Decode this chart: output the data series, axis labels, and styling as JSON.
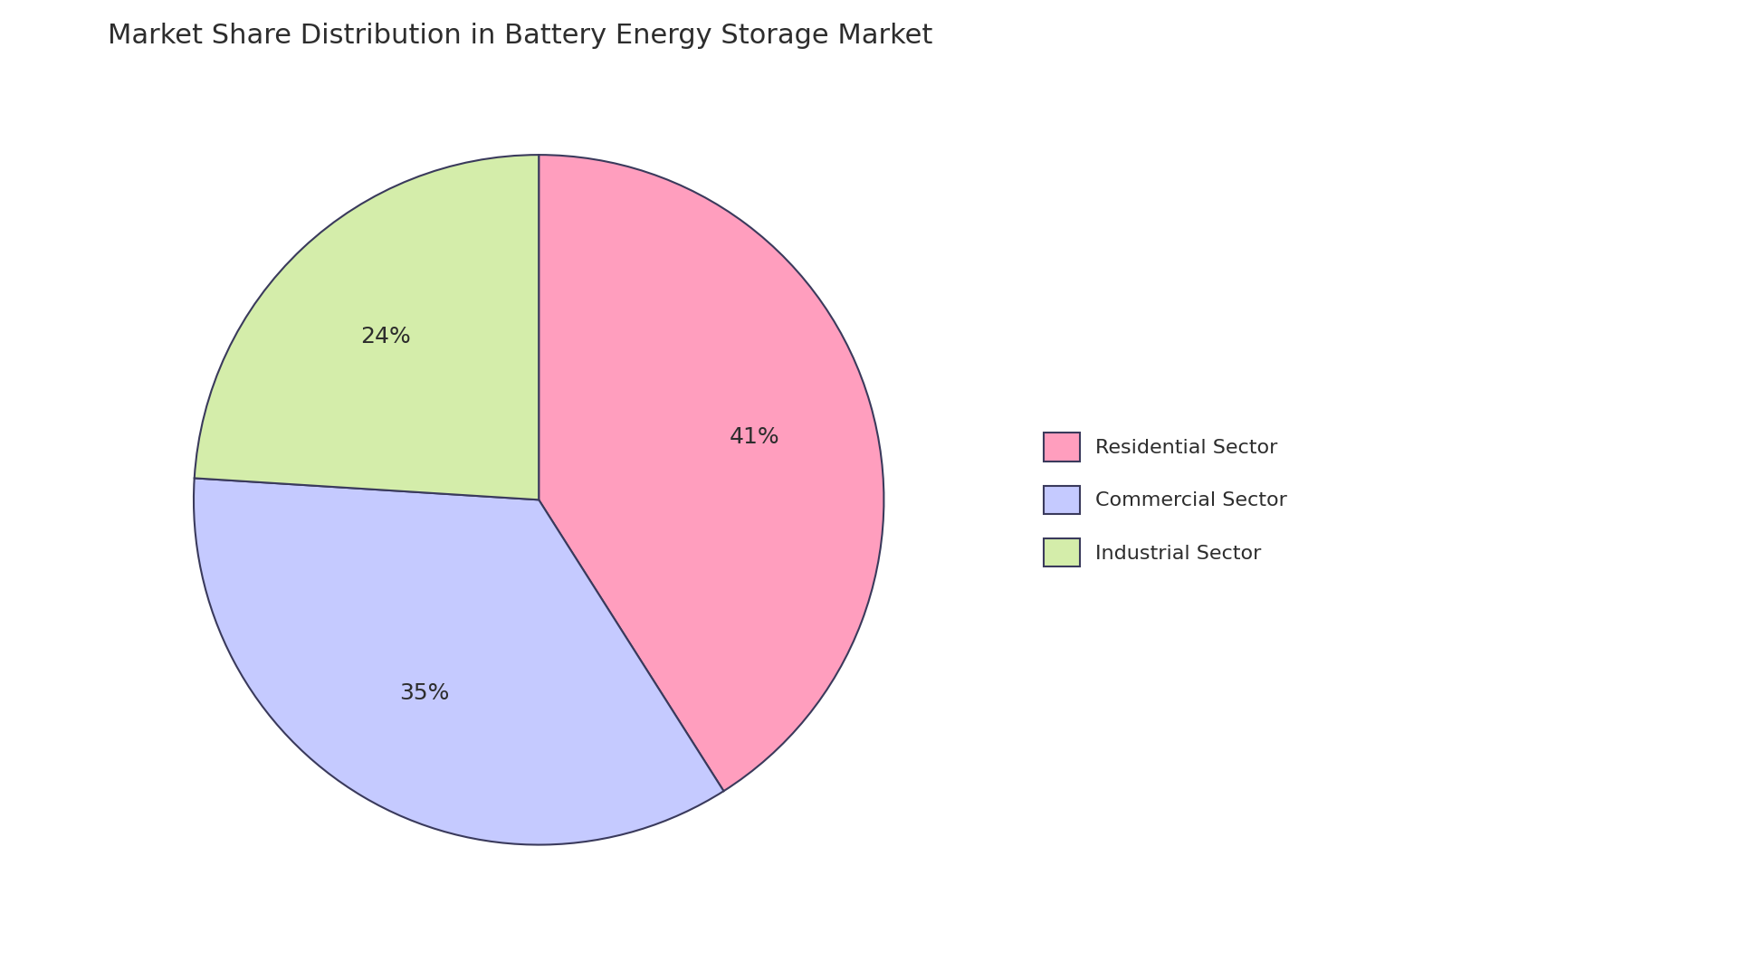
{
  "title": "Market Share Distribution in Battery Energy Storage Market",
  "title_fontsize": 22,
  "title_color": "#2d2d2d",
  "background_color": "#ffffff",
  "sectors": [
    "Residential Sector",
    "Commercial Sector",
    "Industrial Sector"
  ],
  "values": [
    41,
    35,
    24
  ],
  "colors": [
    "#ff9ebe",
    "#c5caff",
    "#d4edaa"
  ],
  "edge_color": "#3a3a5c",
  "edge_width": 1.5,
  "autopct_fontsize": 18,
  "autopct_color": "#2d2d2d",
  "legend_fontsize": 16,
  "startangle": 90,
  "counterclock": false
}
